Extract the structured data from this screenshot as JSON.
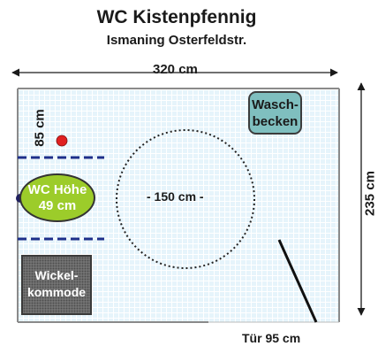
{
  "title": "WC Kistenpfennig",
  "subtitle": "Ismaning Osterfeldstr.",
  "dimensions": {
    "width": "320 cm",
    "depth": "235 cm",
    "grab_bar_height": "85 cm",
    "turning_circle": "- 150 cm -",
    "door": "Tür 95 cm"
  },
  "fixtures": {
    "sink": {
      "line1": "Wasch-",
      "line2": "becken"
    },
    "toilet": {
      "line1": "WC Höhe",
      "line2": "49 cm"
    },
    "changing_table": {
      "line1": "Wickel-",
      "line2": "kommode"
    }
  },
  "colors": {
    "floor": "#e6f4fb",
    "sink": "#7fbfbf",
    "toilet": "#9ccc2a",
    "changing_table": "#7a7a7a",
    "grab_bar": "#1e2f8a",
    "marker": "#e02020"
  }
}
